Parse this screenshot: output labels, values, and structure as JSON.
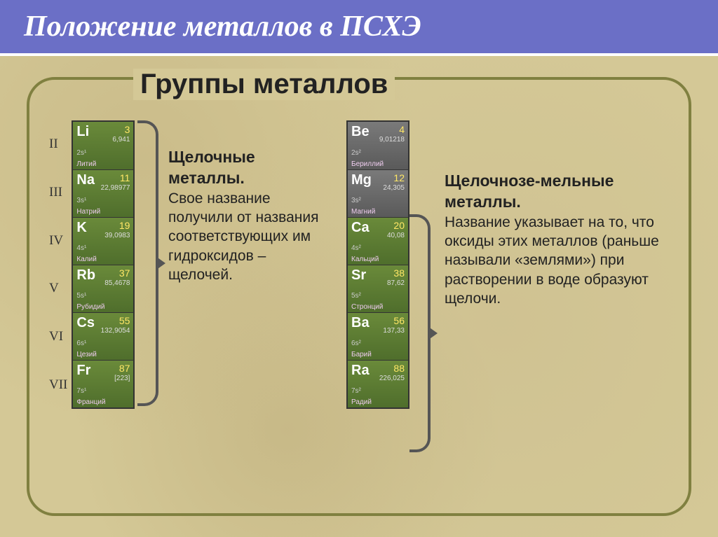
{
  "header": {
    "title": "Положение металлов в ПСХЭ"
  },
  "subtitle": "Группы металлов",
  "periods": [
    "II",
    "III",
    "IV",
    "V",
    "VI",
    "VII"
  ],
  "group1": {
    "title": "Щелочные металлы.",
    "body": "Свое название получили от названия соответствующих им гидроксидов – щелочей.",
    "elements": [
      {
        "sym": "Li",
        "num": "3",
        "mass": "6,941",
        "cfg": "2s¹",
        "name": "Литий"
      },
      {
        "sym": "Na",
        "num": "11",
        "mass": "22,98977",
        "cfg": "3s¹",
        "name": "Натрий"
      },
      {
        "sym": "K",
        "num": "19",
        "mass": "39,0983",
        "cfg": "4s¹",
        "name": "Калий"
      },
      {
        "sym": "Rb",
        "num": "37",
        "mass": "85,4678",
        "cfg": "5s¹",
        "name": "Рубидий"
      },
      {
        "sym": "Cs",
        "num": "55",
        "mass": "132,9054",
        "cfg": "6s¹",
        "name": "Цезий"
      },
      {
        "sym": "Fr",
        "num": "87",
        "mass": "[223]",
        "cfg": "7s¹",
        "name": "Франций"
      }
    ]
  },
  "group2": {
    "title": "Щелочнозе-мельные металлы.",
    "body": "Название указывает на то, что оксиды этих металлов (раньше называли «землями») при растворении в воде образуют щелочи.",
    "elements": [
      {
        "sym": "Be",
        "num": "4",
        "mass": "9,01218",
        "cfg": "2s²",
        "name": "Бериллий",
        "gray": true
      },
      {
        "sym": "Mg",
        "num": "12",
        "mass": "24,305",
        "cfg": "3s²",
        "name": "Магний",
        "gray": true
      },
      {
        "sym": "Ca",
        "num": "20",
        "mass": "40,08",
        "cfg": "4s²",
        "name": "Кальций"
      },
      {
        "sym": "Sr",
        "num": "38",
        "mass": "87,62",
        "cfg": "5s²",
        "name": "Стронций"
      },
      {
        "sym": "Ba",
        "num": "56",
        "mass": "137,33",
        "cfg": "6s²",
        "name": "Барий"
      },
      {
        "sym": "Ra",
        "num": "88",
        "mass": "226,025",
        "cfg": "7s²",
        "name": "Радий"
      }
    ]
  },
  "colors": {
    "header_bg": "#6b6fc6",
    "frame_border": "#808040",
    "element_green": "#5a7a32",
    "element_gray": "#6a6a6a",
    "brace": "#555555"
  }
}
